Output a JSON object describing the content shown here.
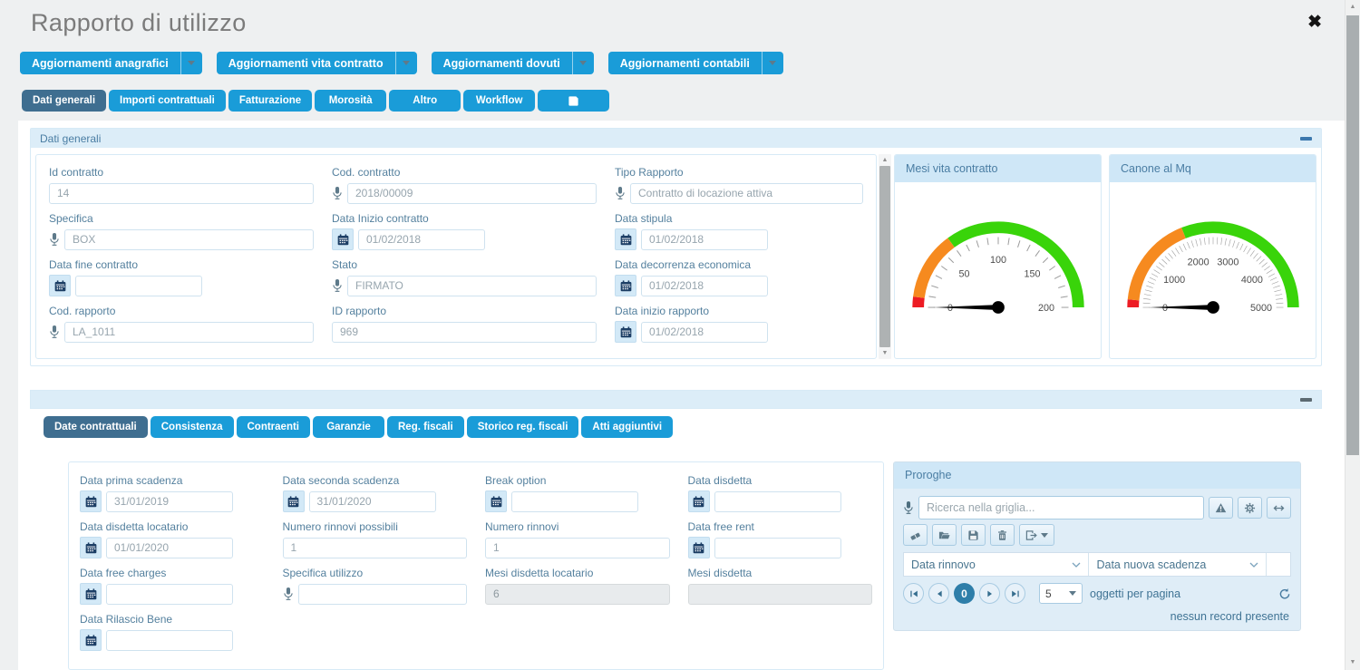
{
  "header": {
    "title": "Rapporto di utilizzo",
    "close_icon": "✖"
  },
  "action_buttons": [
    {
      "label": "Aggiornamenti anagrafici"
    },
    {
      "label": "Aggiornamenti vita contratto"
    },
    {
      "label": "Aggiornamenti dovuti"
    },
    {
      "label": "Aggiornamenti contabili"
    }
  ],
  "main_tabs": [
    {
      "label": "Dati generali",
      "active": true
    },
    {
      "label": "Importi contrattuali"
    },
    {
      "label": "Fatturazione"
    },
    {
      "label": "Morosità"
    },
    {
      "label": "Altro"
    },
    {
      "label": "Workflow"
    },
    {
      "label": "",
      "icon": "save"
    }
  ],
  "panel1": {
    "title": "Dati generali",
    "columns": [
      [
        {
          "label": "Id contratto",
          "value": "14",
          "icon": null
        },
        {
          "label": "Specifica",
          "value": "BOX",
          "icon": "mic"
        },
        {
          "label": "Data fine contratto",
          "value": "",
          "icon": "calendar"
        },
        {
          "label": "Cod. rapporto",
          "value": "LA_1011",
          "icon": "mic"
        }
      ],
      [
        {
          "label": "Cod. contratto",
          "value": "2018/00009",
          "icon": "mic"
        },
        {
          "label": "Data Inizio contratto",
          "value": "01/02/2018",
          "icon": "calendar"
        },
        {
          "label": "Stato",
          "value": "FIRMATO",
          "icon": "mic"
        },
        {
          "label": "ID rapporto",
          "value": "969",
          "icon": null
        }
      ],
      [
        {
          "label": "Tipo Rapporto",
          "value": "Contratto di locazione attiva",
          "icon": "mic"
        },
        {
          "label": "Data stipula",
          "value": "01/02/2018",
          "icon": "calendar"
        },
        {
          "label": "Data decorrenza economica",
          "value": "01/02/2018",
          "icon": "calendar"
        },
        {
          "label": "Data inizio rapporto",
          "value": "01/02/2018",
          "icon": "calendar"
        }
      ]
    ]
  },
  "chart_data": [
    {
      "type": "gauge",
      "title": "Mesi vita contratto",
      "min": 0,
      "max": 200,
      "major_tick_step": 50,
      "minor_tick_step": 10,
      "tick_labels": [
        0,
        50,
        100,
        150,
        200
      ],
      "needle_value": 0,
      "segments": [
        {
          "from": 0,
          "to": 8,
          "color": "#ed1c24"
        },
        {
          "from": 8,
          "to": 60,
          "color": "#f68a1f"
        },
        {
          "from": 60,
          "to": 200,
          "color": "#39d40a"
        }
      ]
    },
    {
      "type": "gauge",
      "title": "Canone al Mq",
      "min": 0,
      "max": 5000,
      "major_tick_step": 1000,
      "minor_tick_step": 100,
      "tick_labels": [
        0,
        1000,
        2000,
        3000,
        4000,
        5000
      ],
      "needle_value": 0,
      "segments": [
        {
          "from": 0,
          "to": 150,
          "color": "#ed1c24"
        },
        {
          "from": 150,
          "to": 1900,
          "color": "#f68a1f"
        },
        {
          "from": 1900,
          "to": 5000,
          "color": "#39d40a"
        }
      ]
    }
  ],
  "panel2": {
    "tabs": [
      {
        "label": "Date contrattuali",
        "active": true
      },
      {
        "label": "Consistenza"
      },
      {
        "label": "Contraenti"
      },
      {
        "label": "Garanzie"
      },
      {
        "label": "Reg. fiscali"
      },
      {
        "label": "Storico reg. fiscali"
      },
      {
        "label": "Atti aggiuntivi"
      }
    ],
    "columns": [
      [
        {
          "label": "Data prima scadenza",
          "value": "31/01/2019",
          "icon": "calendar"
        },
        {
          "label": "Data disdetta locatario",
          "value": "01/01/2020",
          "icon": "calendar"
        },
        {
          "label": "Data free charges",
          "value": "",
          "icon": "calendar"
        },
        {
          "label": "Data Rilascio Bene",
          "value": "",
          "icon": "calendar"
        }
      ],
      [
        {
          "label": "Data seconda scadenza",
          "value": "31/01/2020",
          "icon": "calendar"
        },
        {
          "label": "Numero rinnovi possibili",
          "value": "1",
          "icon": null
        },
        {
          "label": "Specifica utilizzo",
          "value": "",
          "icon": "mic"
        }
      ],
      [
        {
          "label": "Break option",
          "value": "",
          "icon": "calendar"
        },
        {
          "label": "Numero rinnovi",
          "value": "1",
          "icon": null
        },
        {
          "label": "Mesi disdetta locatario",
          "value": "6",
          "icon": null,
          "disabled": true
        }
      ],
      [
        {
          "label": "Data disdetta",
          "value": "",
          "icon": "calendar"
        },
        {
          "label": "Data free rent",
          "value": "",
          "icon": "calendar"
        },
        {
          "label": "Mesi disdetta",
          "value": "",
          "icon": null,
          "disabled": true
        }
      ]
    ]
  },
  "proroghe": {
    "title": "Proroghe",
    "search_placeholder": "Ricerca nella griglia...",
    "search_buttons": [
      "warning",
      "gear",
      "resize-horizontal"
    ],
    "toolbar_buttons": [
      "eraser",
      "open",
      "save",
      "trash",
      "export"
    ],
    "grid_columns": [
      "Data rinnovo",
      "Data nuova scadenza"
    ],
    "pager": {
      "current_page": "0",
      "page_size": "5",
      "page_size_label": "oggetti per pagina",
      "empty_text": "nessun record presente"
    }
  }
}
